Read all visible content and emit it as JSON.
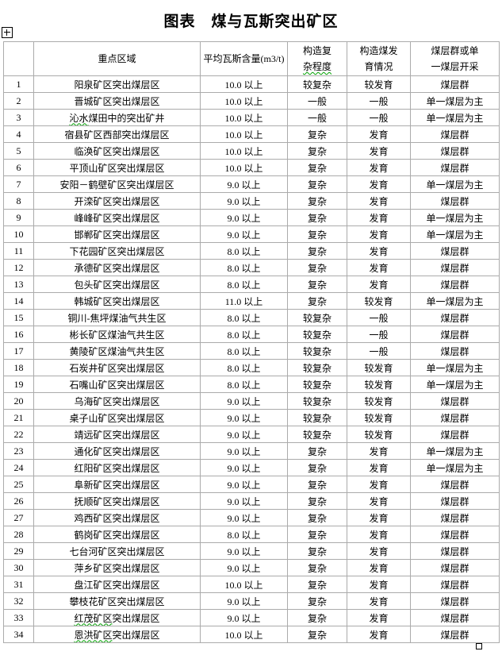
{
  "title": "图表　煤与瓦斯突出矿区",
  "colors": {
    "background": "#ffffff",
    "table_border": "#ababab",
    "text": "#000000",
    "spellcheck_underline": "#00a000"
  },
  "icons": {
    "move_handle": "table-move-handle",
    "resize_handle": "table-resize-handle"
  },
  "table": {
    "headers": {
      "row_no": "",
      "region": "重点区域",
      "gas": "平均瓦斯含量(m3/t)",
      "complexity_line1": "构造复",
      "complexity_line2": "杂程度",
      "development_line1": "构造煤发",
      "development_line2": "育情况",
      "seam_line1": "煤层群或单",
      "seam_line2": "一煤层开采"
    },
    "rows": [
      {
        "no": "1",
        "region": "阳泉矿区突出煤层区",
        "gas": "10.0 以上",
        "complexity": "较复杂",
        "development": "较发育",
        "seams": "煤层群",
        "wavy": 0
      },
      {
        "no": "2",
        "region": "晋城矿区突出煤层区",
        "gas": "10.0 以上",
        "complexity": "一般",
        "development": "一般",
        "seams": "单一煤层为主",
        "wavy": 0
      },
      {
        "no": "3",
        "region": "沁水煤田中的突出矿井",
        "gas": "10.0 以上",
        "complexity": "一般",
        "development": "一般",
        "seams": "单一煤层为主",
        "wavy": 2
      },
      {
        "no": "4",
        "region": "宿县矿区西部突出煤层区",
        "gas": "10.0 以上",
        "complexity": "复杂",
        "development": "发育",
        "seams": "煤层群",
        "wavy": 0
      },
      {
        "no": "5",
        "region": "临涣矿区突出煤层区",
        "gas": "10.0 以上",
        "complexity": "复杂",
        "development": "发育",
        "seams": "煤层群",
        "wavy": 0
      },
      {
        "no": "6",
        "region": "平顶山矿区突出煤层区",
        "gas": "10.0 以上",
        "complexity": "复杂",
        "development": "发育",
        "seams": "煤层群",
        "wavy": 0
      },
      {
        "no": "7",
        "region": "安阳－鹤壁矿区突出煤层区",
        "gas": "9.0 以上",
        "complexity": "复杂",
        "development": "发育",
        "seams": "单一煤层为主",
        "wavy": 0
      },
      {
        "no": "8",
        "region": "开滦矿区突出煤层区",
        "gas": "9.0 以上",
        "complexity": "复杂",
        "development": "发育",
        "seams": "煤层群",
        "wavy": 0
      },
      {
        "no": "9",
        "region": "峰峰矿区突出煤层区",
        "gas": "9.0 以上",
        "complexity": "复杂",
        "development": "发育",
        "seams": "单一煤层为主",
        "wavy": 0
      },
      {
        "no": "10",
        "region": "邯郸矿区突出煤层区",
        "gas": "9.0 以上",
        "complexity": "复杂",
        "development": "发育",
        "seams": "单一煤层为主",
        "wavy": 0
      },
      {
        "no": "11",
        "region": "下花园矿区突出煤层区",
        "gas": "8.0 以上",
        "complexity": "复杂",
        "development": "发育",
        "seams": "煤层群",
        "wavy": 0
      },
      {
        "no": "12",
        "region": "承德矿区突出煤层区",
        "gas": "8.0 以上",
        "complexity": "复杂",
        "development": "发育",
        "seams": "煤层群",
        "wavy": 0
      },
      {
        "no": "13",
        "region": "包头矿区突出煤层区",
        "gas": "8.0 以上",
        "complexity": "复杂",
        "development": "发育",
        "seams": "煤层群",
        "wavy": 0
      },
      {
        "no": "14",
        "region": "韩城矿区突出煤层区",
        "gas": "11.0 以上",
        "complexity": "复杂",
        "development": "较发育",
        "seams": "单一煤层为主",
        "wavy": 0
      },
      {
        "no": "15",
        "region": "铜川-焦坪煤油气共生区",
        "gas": "8.0 以上",
        "complexity": "较复杂",
        "development": "一般",
        "seams": "煤层群",
        "wavy": 0
      },
      {
        "no": "16",
        "region": "彬长矿区煤油气共生区",
        "gas": "8.0 以上",
        "complexity": "较复杂",
        "development": "一般",
        "seams": "煤层群",
        "wavy": 0
      },
      {
        "no": "17",
        "region": "黄陵矿区煤油气共生区",
        "gas": "8.0 以上",
        "complexity": "较复杂",
        "development": "一般",
        "seams": "煤层群",
        "wavy": 0
      },
      {
        "no": "18",
        "region": "石炭井矿区突出煤层区",
        "gas": "8.0 以上",
        "complexity": "较复杂",
        "development": "较发育",
        "seams": "单一煤层为主",
        "wavy": 0
      },
      {
        "no": "19",
        "region": "石嘴山矿区突出煤层区",
        "gas": "8.0 以上",
        "complexity": "较复杂",
        "development": "较发育",
        "seams": "单一煤层为主",
        "wavy": 0
      },
      {
        "no": "20",
        "region": "乌海矿区突出煤层区",
        "gas": "9.0 以上",
        "complexity": "较复杂",
        "development": "较发育",
        "seams": "煤层群",
        "wavy": 0
      },
      {
        "no": "21",
        "region": "桌子山矿区突出煤层区",
        "gas": "9.0 以上",
        "complexity": "较复杂",
        "development": "较发育",
        "seams": "煤层群",
        "wavy": 0
      },
      {
        "no": "22",
        "region": "靖远矿区突出煤层区",
        "gas": "9.0 以上",
        "complexity": "较复杂",
        "development": "较发育",
        "seams": "煤层群",
        "wavy": 0
      },
      {
        "no": "23",
        "region": "通化矿区突出煤层区",
        "gas": "9.0 以上",
        "complexity": "复杂",
        "development": "发育",
        "seams": "单一煤层为主",
        "wavy": 0
      },
      {
        "no": "24",
        "region": "红阳矿区突出煤层区",
        "gas": "9.0 以上",
        "complexity": "复杂",
        "development": "发育",
        "seams": "单一煤层为主",
        "wavy": 0
      },
      {
        "no": "25",
        "region": "阜新矿区突出煤层区",
        "gas": "9.0 以上",
        "complexity": "复杂",
        "development": "发育",
        "seams": "煤层群",
        "wavy": 0
      },
      {
        "no": "26",
        "region": "抚顺矿区突出煤层区",
        "gas": "9.0 以上",
        "complexity": "复杂",
        "development": "发育",
        "seams": "煤层群",
        "wavy": 0
      },
      {
        "no": "27",
        "region": "鸡西矿区突出煤层区",
        "gas": "9.0 以上",
        "complexity": "复杂",
        "development": "发育",
        "seams": "煤层群",
        "wavy": 0
      },
      {
        "no": "28",
        "region": "鹤岗矿区突出煤层区",
        "gas": "8.0 以上",
        "complexity": "复杂",
        "development": "发育",
        "seams": "煤层群",
        "wavy": 0
      },
      {
        "no": "29",
        "region": "七台河矿区突出煤层区",
        "gas": "9.0 以上",
        "complexity": "复杂",
        "development": "发育",
        "seams": "煤层群",
        "wavy": 0
      },
      {
        "no": "30",
        "region": "萍乡矿区突出煤层区",
        "gas": "9.0 以上",
        "complexity": "复杂",
        "development": "发育",
        "seams": "煤层群",
        "wavy": 0
      },
      {
        "no": "31",
        "region": "盘江矿区突出煤层区",
        "gas": "10.0 以上",
        "complexity": "复杂",
        "development": "发育",
        "seams": "煤层群",
        "wavy": 0
      },
      {
        "no": "32",
        "region": "攀枝花矿区突出煤层区",
        "gas": "9.0 以上",
        "complexity": "复杂",
        "development": "发育",
        "seams": "煤层群",
        "wavy": 0
      },
      {
        "no": "33",
        "region": "红茂矿区突出煤层区",
        "gas": "9.0 以上",
        "complexity": "复杂",
        "development": "发育",
        "seams": "煤层群",
        "wavy": 4
      },
      {
        "no": "34",
        "region": "恩洪矿区突出煤层区",
        "gas": "10.0 以上",
        "complexity": "复杂",
        "development": "发育",
        "seams": "煤层群",
        "wavy": 4
      }
    ]
  }
}
